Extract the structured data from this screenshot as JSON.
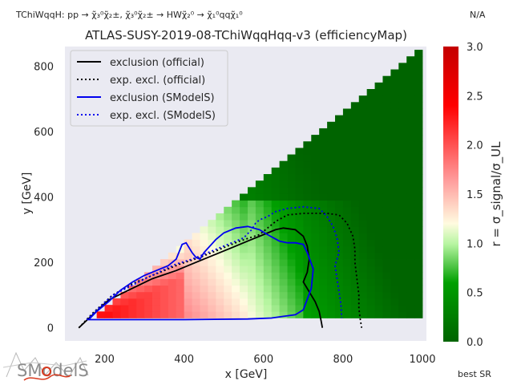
{
  "header": {
    "process": "TChiWqqH: pp → χ̃₃⁰χ̃₂±, χ̃₃⁰χ̃₂± → HWχ̃₂⁰ → χ̃₁⁰qqχ̃₁⁰",
    "status": "N/A",
    "footer_right": "best SR",
    "logo_text": "SModelS"
  },
  "chart_data": {
    "type": "heatmap",
    "title": "ATLAS-SUSY-2019-08-TChiWqqHqq-v3 (efficiencyMap)",
    "xlabel": "x [GeV]",
    "ylabel": "y [GeV]",
    "xlim": [
      100,
      1010
    ],
    "ylim": [
      -40,
      860
    ],
    "x_ticks": [
      "200",
      "400",
      "600",
      "800",
      "1000"
    ],
    "y_ticks": [
      "0",
      "200",
      "400",
      "600",
      "800"
    ],
    "x_tick_values": [
      200,
      400,
      600,
      800,
      1000
    ],
    "y_tick_values": [
      0,
      200,
      400,
      600,
      800
    ],
    "grid": false,
    "colorbar": {
      "label": "r = σ_signal/σ_UL",
      "min": 0.0,
      "max": 3.0,
      "ticks": [
        "0.0",
        "0.5",
        "1.0",
        "1.5",
        "2.0",
        "2.5",
        "3.0"
      ],
      "tick_values": [
        0.0,
        0.5,
        1.0,
        1.5,
        2.0,
        2.5,
        3.0
      ],
      "colors": [
        "#006400",
        "#00a000",
        "#b6f5a0",
        "#fffbe0",
        "#ff9a9a",
        "#ff0000",
        "#c40000"
      ]
    },
    "legend": {
      "placement": "top-left",
      "entries": [
        {
          "label": "exclusion (official)",
          "color": "#000000",
          "dash": "solid"
        },
        {
          "label": "exp. excl. (official)",
          "color": "#000000",
          "dash": "dotted"
        },
        {
          "label": "exclusion (SModelS)",
          "color": "#0000ee",
          "dash": "solid"
        },
        {
          "label": "exp. excl. (SModelS)",
          "color": "#0000ee",
          "dash": "dotted"
        }
      ]
    },
    "heatmap_grid": {
      "x_min": 140,
      "x_max": 1000,
      "y_min": 30,
      "cell": 20
    },
    "curves": {
      "exclusion_official": [
        [
          135,
          0
        ],
        [
          170,
          40
        ],
        [
          210,
          85
        ],
        [
          260,
          115
        ],
        [
          320,
          150
        ],
        [
          380,
          175
        ],
        [
          430,
          200
        ],
        [
          480,
          225
        ],
        [
          520,
          245
        ],
        [
          560,
          265
        ],
        [
          600,
          285
        ],
        [
          630,
          300
        ],
        [
          650,
          305
        ],
        [
          680,
          300
        ],
        [
          700,
          280
        ],
        [
          710,
          250
        ],
        [
          715,
          210
        ],
        [
          710,
          170
        ],
        [
          700,
          140
        ],
        [
          715,
          110
        ],
        [
          730,
          80
        ],
        [
          740,
          50
        ],
        [
          745,
          20
        ],
        [
          748,
          0
        ]
      ],
      "exp_excl_official": [
        [
          135,
          0
        ],
        [
          170,
          45
        ],
        [
          220,
          100
        ],
        [
          270,
          135
        ],
        [
          330,
          165
        ],
        [
          390,
          195
        ],
        [
          440,
          215
        ],
        [
          490,
          240
        ],
        [
          540,
          265
        ],
        [
          590,
          285
        ],
        [
          630,
          325
        ],
        [
          660,
          345
        ],
        [
          700,
          350
        ],
        [
          760,
          350
        ],
        [
          790,
          345
        ],
        [
          810,
          320
        ],
        [
          825,
          280
        ],
        [
          830,
          240
        ],
        [
          830,
          200
        ],
        [
          835,
          150
        ],
        [
          840,
          100
        ],
        [
          840,
          60
        ],
        [
          843,
          30
        ],
        [
          847,
          0
        ]
      ],
      "exclusion_smodels": [
        [
          400,
          25
        ],
        [
          560,
          27
        ],
        [
          620,
          30
        ],
        [
          650,
          35
        ],
        [
          680,
          40
        ],
        [
          700,
          55
        ],
        [
          720,
          120
        ],
        [
          725,
          180
        ],
        [
          710,
          230
        ],
        [
          700,
          255
        ],
        [
          680,
          260
        ],
        [
          660,
          260
        ],
        [
          640,
          265
        ],
        [
          610,
          285
        ],
        [
          590,
          300
        ],
        [
          560,
          310
        ],
        [
          530,
          305
        ],
        [
          500,
          290
        ],
        [
          480,
          270
        ],
        [
          450,
          230
        ],
        [
          440,
          210
        ],
        [
          430,
          215
        ],
        [
          420,
          230
        ],
        [
          410,
          250
        ],
        [
          405,
          260
        ],
        [
          395,
          255
        ],
        [
          380,
          210
        ],
        [
          360,
          190
        ],
        [
          330,
          175
        ],
        [
          300,
          160
        ],
        [
          270,
          140
        ],
        [
          240,
          115
        ],
        [
          210,
          80
        ],
        [
          180,
          50
        ],
        [
          160,
          25
        ],
        [
          400,
          25
        ]
      ],
      "exp_excl_smodels": [
        [
          155,
          25
        ],
        [
          180,
          55
        ],
        [
          220,
          100
        ],
        [
          270,
          130
        ],
        [
          310,
          155
        ],
        [
          345,
          175
        ],
        [
          380,
          195
        ],
        [
          420,
          210
        ],
        [
          470,
          235
        ],
        [
          510,
          255
        ],
        [
          550,
          275
        ],
        [
          570,
          300
        ],
        [
          580,
          320
        ],
        [
          590,
          330
        ],
        [
          610,
          340
        ],
        [
          630,
          355
        ],
        [
          660,
          365
        ],
        [
          700,
          370
        ],
        [
          740,
          365
        ],
        [
          760,
          340
        ],
        [
          775,
          310
        ],
        [
          785,
          275
        ],
        [
          790,
          230
        ],
        [
          780,
          190
        ],
        [
          785,
          150
        ],
        [
          790,
          110
        ],
        [
          795,
          70
        ],
        [
          797,
          30
        ]
      ]
    }
  }
}
